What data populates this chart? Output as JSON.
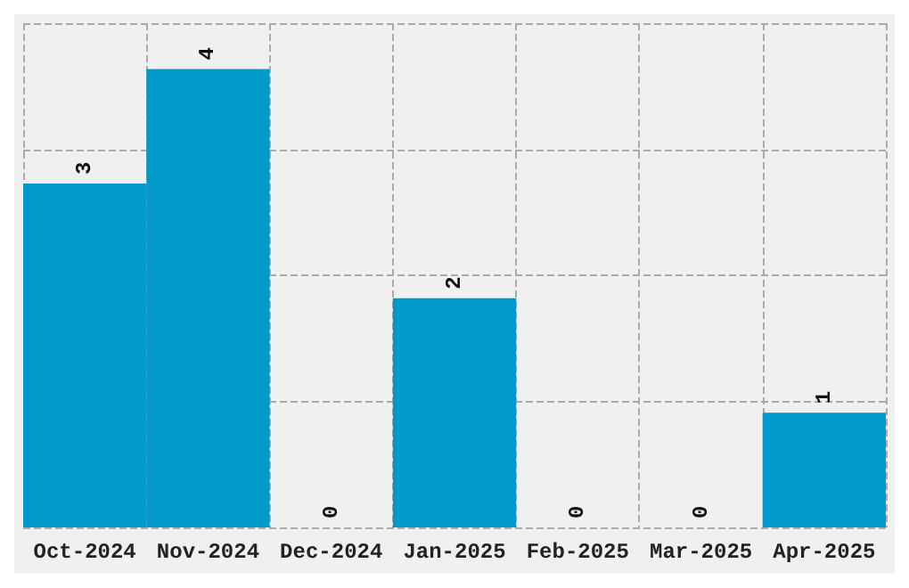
{
  "chart_data": {
    "type": "bar",
    "categories": [
      "Oct-2024",
      "Nov-2024",
      "Dec-2024",
      "Jan-2025",
      "Feb-2025",
      "Mar-2025",
      "Apr-2025"
    ],
    "values": [
      3,
      4,
      0,
      2,
      0,
      0,
      1
    ],
    "color": "#0099cc",
    "data_labels": true,
    "grid": true,
    "tick_labels": "x",
    "ylim": [
      0,
      4.4
    ],
    "yticks": [
      {
        "value": 0,
        "label": null
      },
      {
        "value": 1.1,
        "label": null
      },
      {
        "value": 2.2,
        "label": null
      },
      {
        "value": 3.3,
        "label": null
      },
      {
        "value": 4.4,
        "label": null
      }
    ]
  }
}
